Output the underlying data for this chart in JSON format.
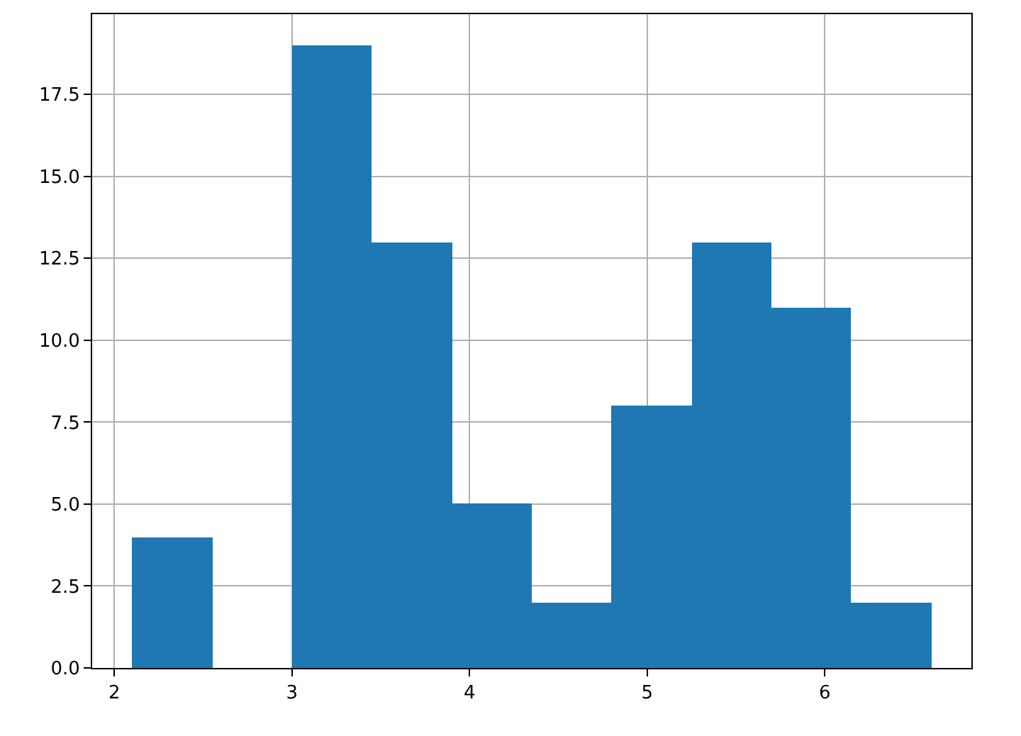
{
  "chart_data": {
    "type": "histogram",
    "bins": [
      2.1,
      2.55,
      3.0,
      3.45,
      3.9,
      4.35,
      4.8,
      5.25,
      5.7,
      6.15,
      6.6
    ],
    "values": [
      4,
      0,
      19,
      13,
      5,
      2,
      8,
      13,
      11,
      2
    ],
    "color": "#1f77b4",
    "xlim": [
      1.875,
      6.825
    ],
    "xticks": [
      2,
      3,
      4,
      5,
      6
    ],
    "ylim": [
      0,
      19.95
    ],
    "yticks": [
      {
        "value": 0,
        "label": "0.0"
      },
      {
        "value": 2.5,
        "label": "2.5"
      },
      {
        "value": 5,
        "label": "5.0"
      },
      {
        "value": 7.5,
        "label": "7.5"
      },
      {
        "value": 10,
        "label": "10.0"
      },
      {
        "value": 12.5,
        "label": "12.5"
      },
      {
        "value": 15,
        "label": "15.0"
      },
      {
        "value": 17.5,
        "label": "17.5"
      }
    ],
    "grid": true
  }
}
